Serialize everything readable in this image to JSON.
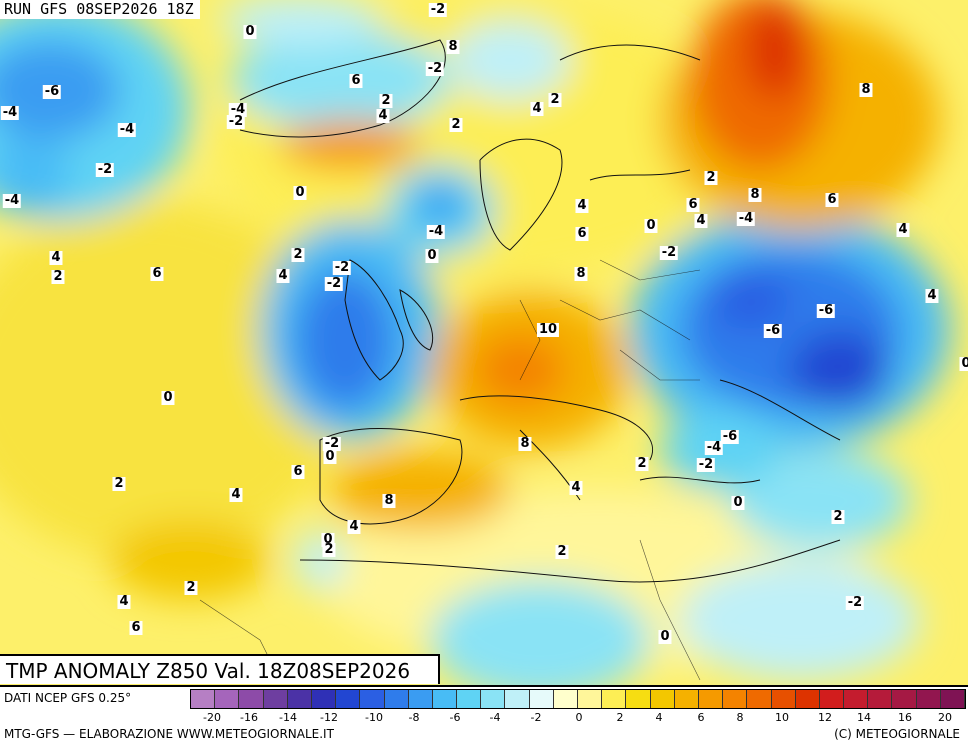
{
  "header": {
    "run_label": "RUN GFS 08SEP2026 18Z",
    "map_title": "TMP ANOMALY Z850 Val. 18Z08SEP2026"
  },
  "footer": {
    "data_source": "DATI NCEP GFS 0.25°",
    "credit_left": "MTG-GFS — ELABORAZIONE WWW.METEOGIORNALE.IT",
    "credit_right": "(C) METEOGIORNALE"
  },
  "legend": {
    "ticks": [
      "-20",
      "-16",
      "-14",
      "-12",
      "-10",
      "-8",
      "-6",
      "-4",
      "-2",
      "0",
      "2",
      "4",
      "6",
      "8",
      "10",
      "12",
      "14",
      "16",
      "20"
    ],
    "colors": [
      "#b67fc4",
      "#a565bb",
      "#8d4ba8",
      "#6e3ea0",
      "#4b32a6",
      "#2f30b6",
      "#2246d2",
      "#2b5fe3",
      "#2f7ceb",
      "#3a9cf2",
      "#48bcf5",
      "#5fd3f4",
      "#8ae3f5",
      "#bff0f8",
      "#e6fafa",
      "#ffffcc",
      "#fff69a",
      "#fdee55",
      "#f6dd12",
      "#f3c700",
      "#f5b100",
      "#f59a00",
      "#f48300",
      "#ef6a00",
      "#e75000",
      "#dd3300",
      "#d21d1d",
      "#c41c2e",
      "#b51b3a",
      "#a51944",
      "#92164f",
      "#7f1354"
    ]
  },
  "map": {
    "region": "Europe, North Africa, North Atlantic",
    "variable": "temperature anomaly at 850 hPa",
    "unit": "°C",
    "contour_labels": [
      "-2",
      "0",
      "-6",
      "-4",
      "-4",
      "-2",
      "-4",
      "-2",
      "2",
      "4",
      "6",
      "8",
      "-2",
      "0",
      "2",
      "4",
      "6",
      "4",
      "2",
      "-4",
      "-2",
      "-2",
      "-4",
      "0",
      "2",
      "4",
      "2",
      "4",
      "6",
      "8",
      "10",
      "2",
      "8",
      "6",
      "-4",
      "0",
      "-2",
      "4",
      "6",
      "-6",
      "-6",
      "4",
      "0",
      "8",
      "4",
      "-2",
      "0",
      "6",
      "2",
      "4",
      "8",
      "-6",
      "-4",
      "-2",
      "2",
      "0",
      "2",
      "4",
      "8",
      "4",
      "0",
      "2",
      "2",
      "4",
      "6",
      "2",
      "-2",
      "0",
      "0"
    ]
  }
}
